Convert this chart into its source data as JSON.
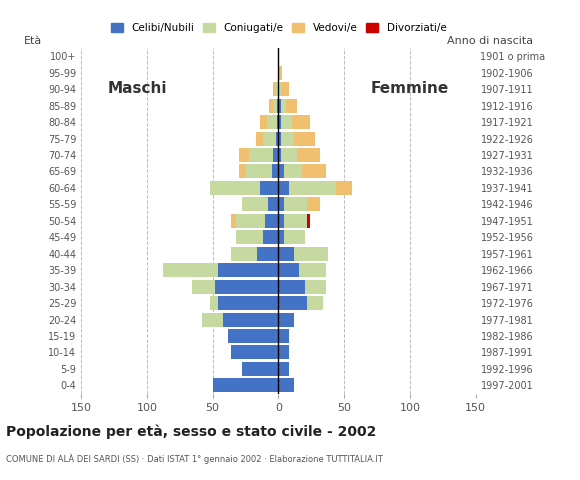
{
  "age_groups": [
    "0-4",
    "5-9",
    "10-14",
    "15-19",
    "20-24",
    "25-29",
    "30-34",
    "35-39",
    "40-44",
    "45-49",
    "50-54",
    "55-59",
    "60-64",
    "65-69",
    "70-74",
    "75-79",
    "80-84",
    "85-89",
    "90-94",
    "95-99",
    "100+"
  ],
  "birth_years": [
    "1997-2001",
    "1992-1996",
    "1987-1991",
    "1982-1986",
    "1977-1981",
    "1972-1976",
    "1967-1971",
    "1962-1966",
    "1957-1961",
    "1952-1956",
    "1947-1951",
    "1942-1946",
    "1937-1941",
    "1932-1936",
    "1927-1931",
    "1922-1926",
    "1917-1921",
    "1912-1916",
    "1907-1911",
    "1902-1906",
    "1901 o prima"
  ],
  "males": {
    "celibi": [
      50,
      28,
      36,
      38,
      42,
      46,
      48,
      46,
      16,
      12,
      10,
      8,
      14,
      5,
      4,
      2,
      1,
      1,
      0,
      0,
      0
    ],
    "coniugati": [
      0,
      0,
      0,
      0,
      16,
      6,
      18,
      42,
      20,
      20,
      22,
      20,
      38,
      20,
      18,
      10,
      8,
      3,
      2,
      0,
      0
    ],
    "vedovi": [
      0,
      0,
      0,
      0,
      0,
      0,
      0,
      0,
      0,
      0,
      4,
      0,
      0,
      5,
      8,
      5,
      5,
      3,
      2,
      0,
      0
    ],
    "divorziati": [
      0,
      0,
      0,
      0,
      0,
      0,
      0,
      0,
      0,
      0,
      0,
      0,
      0,
      0,
      0,
      0,
      0,
      0,
      0,
      0,
      0
    ]
  },
  "females": {
    "nubili": [
      12,
      8,
      8,
      8,
      12,
      22,
      20,
      16,
      12,
      4,
      4,
      4,
      8,
      4,
      2,
      2,
      2,
      2,
      0,
      0,
      0
    ],
    "coniugate": [
      0,
      0,
      0,
      0,
      0,
      12,
      16,
      20,
      26,
      16,
      18,
      18,
      36,
      14,
      12,
      10,
      8,
      4,
      2,
      0,
      0
    ],
    "vedove": [
      0,
      0,
      0,
      0,
      0,
      0,
      0,
      0,
      0,
      0,
      0,
      10,
      12,
      18,
      18,
      16,
      14,
      8,
      6,
      3,
      0
    ],
    "divorziate": [
      0,
      0,
      0,
      0,
      0,
      0,
      0,
      0,
      0,
      0,
      2,
      0,
      0,
      0,
      0,
      0,
      0,
      0,
      0,
      0,
      0
    ]
  },
  "colors": {
    "celibi": "#4472C4",
    "coniugati": "#C5D9A0",
    "vedovi": "#F0C070",
    "divorziati": "#CC0000"
  },
  "title": "Popolazione per età, sesso e stato civile - 2002",
  "subtitle": "COMUNE DI ALÀ DEI SARDI (SS) · Dati ISTAT 1° gennaio 2002 · Elaborazione TUTTITALIA.IT",
  "xlabel_left": "Maschi",
  "xlabel_right": "Femmine",
  "ylabel_left": "Età",
  "ylabel_right": "Anno di nascita",
  "xlim": 150,
  "legend_labels": [
    "Celibi/Nubili",
    "Coniugati/e",
    "Vedovi/e",
    "Divorziati/e"
  ],
  "bg_color": "#FFFFFF",
  "grid_color": "#BBBBBB"
}
